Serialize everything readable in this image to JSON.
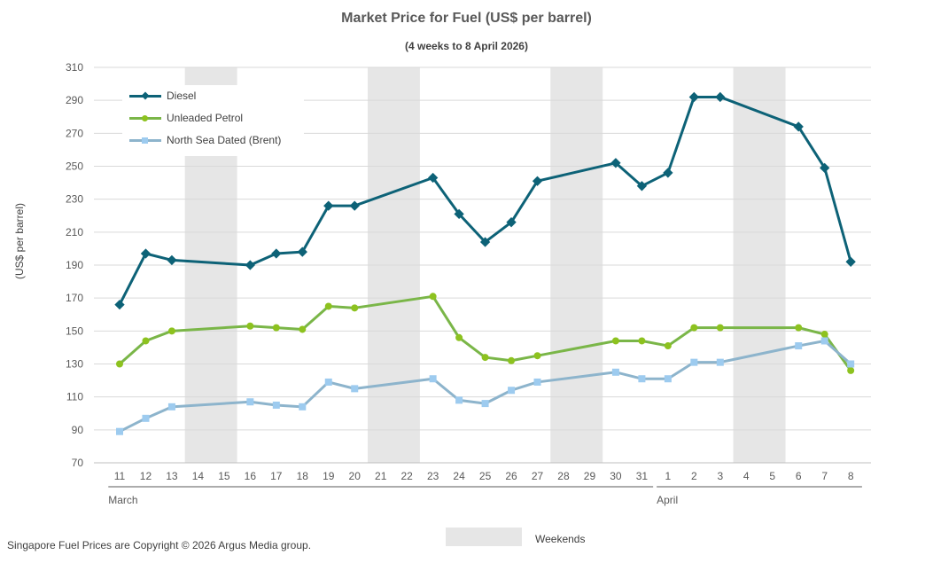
{
  "chart_data": {
    "type": "line",
    "title": "Market Price for Fuel (US$ per barrel)",
    "subtitle": "(4 weeks to 8 April 2026)",
    "xlabel": "",
    "ylabel": "(US$ per barrel)",
    "ylim": [
      70,
      310
    ],
    "yticks": [
      "70",
      "90",
      "110",
      "130",
      "150",
      "170",
      "190",
      "210",
      "230",
      "250",
      "270",
      "290",
      "310"
    ],
    "grid": true,
    "categories": [
      "11",
      "12",
      "13",
      "14",
      "15",
      "16",
      "17",
      "18",
      "19",
      "20",
      "21",
      "22",
      "23",
      "24",
      "25",
      "26",
      "27",
      "28",
      "29",
      "30",
      "31",
      "1",
      "2",
      "3",
      "4",
      "5",
      "6",
      "7",
      "8"
    ],
    "months": [
      {
        "label": "March",
        "start": 0,
        "end": 20
      },
      {
        "label": "April",
        "start": 21,
        "end": 28
      }
    ],
    "weekends": [
      {
        "start": 3,
        "end": 4
      },
      {
        "start": 10,
        "end": 11
      },
      {
        "start": 17,
        "end": 18
      },
      {
        "start": 24,
        "end": 25
      }
    ],
    "legend_position": "top-left",
    "series": [
      {
        "name": "Diesel",
        "color": "#0d6277",
        "marker": "diamond",
        "values": [
          166,
          197,
          193,
          null,
          null,
          190,
          197,
          198,
          226,
          226,
          null,
          null,
          243,
          221,
          204,
          216,
          241,
          null,
          null,
          252,
          238,
          246,
          292,
          292,
          null,
          null,
          274,
          249,
          192
        ]
      },
      {
        "name": "Unleaded Petrol",
        "color": "#7ab648",
        "marker": "circle",
        "values": [
          130,
          144,
          150,
          null,
          null,
          153,
          152,
          151,
          165,
          164,
          null,
          null,
          171,
          146,
          134,
          132,
          135,
          null,
          null,
          144,
          144,
          141,
          152,
          152,
          null,
          null,
          152,
          148,
          126
        ]
      },
      {
        "name": "North Sea Dated (Brent)",
        "color": "#8db4cc",
        "marker": "square",
        "values": [
          89,
          97,
          104,
          null,
          null,
          107,
          105,
          104,
          119,
          115,
          null,
          null,
          121,
          108,
          106,
          114,
          119,
          null,
          null,
          125,
          121,
          121,
          131,
          131,
          null,
          null,
          141,
          144,
          130
        ]
      }
    ]
  },
  "legend": {
    "weekends_label": "Weekends"
  },
  "footer": {
    "copyright": "Singapore Fuel Prices are Copyright © 2026 Argus Media group."
  }
}
